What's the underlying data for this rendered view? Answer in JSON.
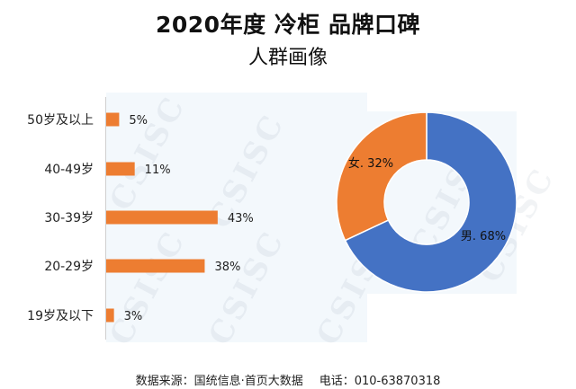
{
  "header": {
    "title": "2020年度 冷柜 品牌口碑",
    "subtitle": "人群画像"
  },
  "watermark": "CSISC",
  "footer": {
    "source": "数据来源：国统信息·首页大数据",
    "phone": "电话：010-63870318"
  },
  "colors": {
    "bar": "#ed7d31",
    "male": "#4472c4",
    "female": "#ed7d31"
  },
  "chart_data": [
    {
      "type": "bar",
      "orientation": "horizontal",
      "categories": [
        "50岁及以上",
        "40-49岁",
        "30-39岁",
        "20-29岁",
        "19岁及以下"
      ],
      "values": [
        5,
        11,
        43,
        38,
        3
      ],
      "value_labels": [
        "5%",
        "11%",
        "43%",
        "38%",
        "3%"
      ],
      "unit": "%"
    },
    {
      "type": "pie",
      "style": "donut",
      "slices": [
        {
          "label": "男",
          "value": 68,
          "value_label": "68%"
        },
        {
          "label": "女",
          "value": 32,
          "value_label": "32%"
        }
      ]
    }
  ]
}
